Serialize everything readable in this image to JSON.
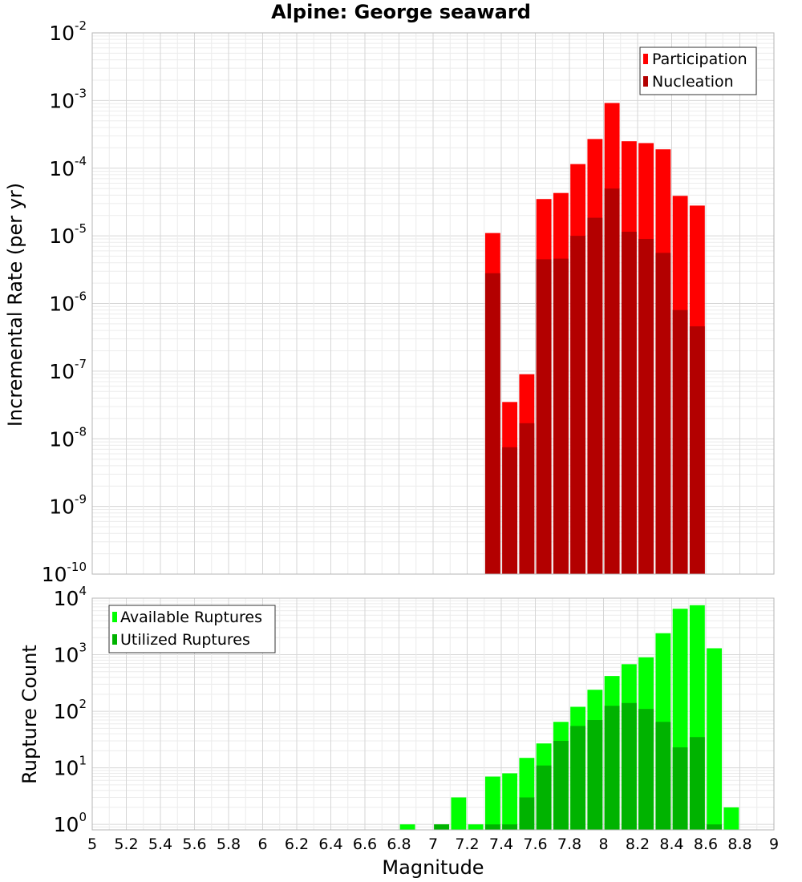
{
  "chart_data": [
    {
      "type": "bar",
      "title": "Alpine: George seaward",
      "ylabel": "Incremental Rate (per yr)",
      "xlabel": "",
      "yscale": "log",
      "ylim": [
        1e-10,
        0.01
      ],
      "xlim": [
        5,
        9
      ],
      "ytick_exponents": [
        -10,
        -9,
        -8,
        -7,
        -6,
        -5,
        -4,
        -3,
        -2
      ],
      "legend_position": "top-right",
      "grid": true,
      "bar_width": 0.1,
      "series": [
        {
          "name": "Participation",
          "color": "#ff0000",
          "x": [
            7.35,
            7.45,
            7.55,
            7.65,
            7.75,
            7.85,
            7.95,
            8.05,
            8.15,
            8.25,
            8.35,
            8.45,
            8.55
          ],
          "values": [
            1.1e-05,
            3.5e-08,
            9e-08,
            3.5e-05,
            4.3e-05,
            0.000115,
            0.00027,
            0.00092,
            0.00025,
            0.000235,
            0.00019,
            3.9e-05,
            2.8e-05
          ]
        },
        {
          "name": "Nucleation",
          "color": "#b30000",
          "x": [
            7.35,
            7.45,
            7.55,
            7.65,
            7.75,
            7.85,
            7.95,
            8.05,
            8.15,
            8.25,
            8.35,
            8.45,
            8.55
          ],
          "values": [
            2.8e-06,
            7.5e-09,
            1.7e-08,
            4.5e-06,
            4.6e-06,
            1e-05,
            1.85e-05,
            5e-05,
            1.15e-05,
            9e-06,
            5.6e-06,
            8e-07,
            4.6e-07
          ]
        }
      ]
    },
    {
      "type": "bar",
      "title": "",
      "ylabel": "Rupture Count",
      "xlabel": "Magnitude",
      "yscale": "log",
      "ylim": [
        0.8,
        10000
      ],
      "xlim": [
        5,
        9
      ],
      "ytick_exponents": [
        0,
        1,
        2,
        3,
        4
      ],
      "xticks": [
        "5",
        "5.2",
        "5.4",
        "5.6",
        "5.8",
        "6",
        "6.2",
        "6.4",
        "6.6",
        "6.8",
        "7",
        "7.2",
        "7.4",
        "7.6",
        "7.8",
        "8",
        "8.2",
        "8.4",
        "8.6",
        "8.8",
        "9"
      ],
      "legend_position": "top-left",
      "grid": true,
      "bar_width": 0.1,
      "series": [
        {
          "name": "Available Ruptures",
          "color": "#00ff00",
          "x": [
            6.85,
            7.05,
            7.15,
            7.25,
            7.35,
            7.45,
            7.55,
            7.65,
            7.75,
            7.85,
            7.95,
            8.05,
            8.15,
            8.25,
            8.35,
            8.45,
            8.55,
            8.65,
            8.75
          ],
          "values": [
            1,
            1,
            3,
            1,
            7,
            8,
            15,
            27,
            65,
            120,
            240,
            420,
            680,
            900,
            2400,
            6500,
            7500,
            1300,
            2
          ]
        },
        {
          "name": "Utilized Ruptures",
          "color": "#00b300",
          "x": [
            7.05,
            7.35,
            7.45,
            7.55,
            7.65,
            7.75,
            7.85,
            7.95,
            8.05,
            8.15,
            8.25,
            8.35,
            8.45,
            8.55,
            8.65
          ],
          "values": [
            1,
            1,
            1,
            3,
            11,
            30,
            55,
            70,
            125,
            140,
            110,
            65,
            23,
            35,
            1
          ]
        }
      ]
    }
  ]
}
